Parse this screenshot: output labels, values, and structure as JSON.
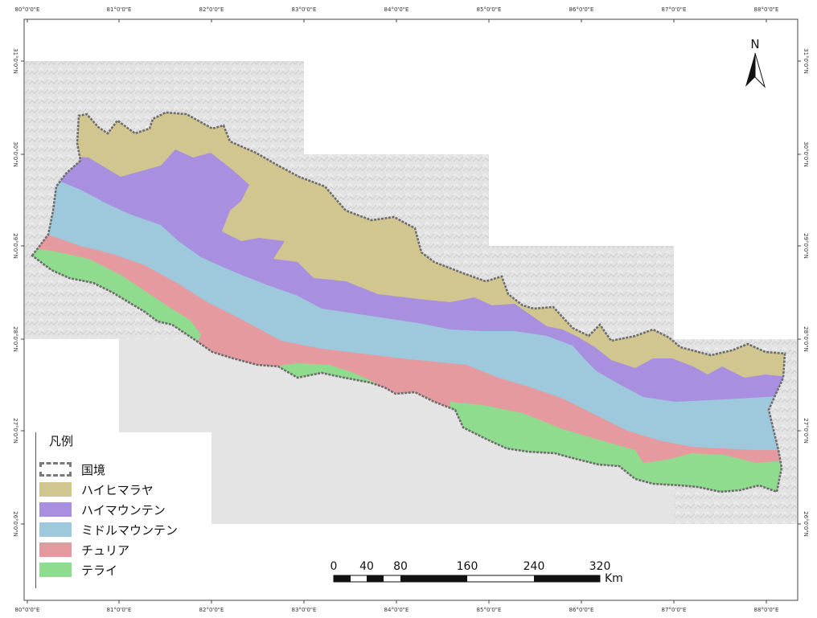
{
  "map": {
    "north_label": "N",
    "lon_ticks": [
      "80°0'0\"E",
      "81°0'0\"E",
      "82°0'0\"E",
      "83°0'0\"E",
      "84°0'0\"E",
      "85°0'0\"E",
      "86°0'0\"E",
      "87°0'0\"E",
      "88°0'0\"E"
    ],
    "lat_ticks": [
      "31°0'0\"N",
      "30°0'0\"N",
      "29°0'0\"N",
      "28°0'0\"N",
      "27°0'0\"N",
      "26°0'0\"N"
    ]
  },
  "legend": {
    "title": "凡例",
    "items": [
      {
        "label": "国境",
        "color": "#ffffff",
        "key": "border"
      },
      {
        "label": "ハイヒマラヤ",
        "color": "#d1c590",
        "key": "high-himalaya"
      },
      {
        "label": "ハイマウンテン",
        "color": "#a98fe0",
        "key": "high-mountain"
      },
      {
        "label": "ミドルマウンテン",
        "color": "#9ec8dc",
        "key": "middle-mountain"
      },
      {
        "label": "チュリア",
        "color": "#e59aa0",
        "key": "churia"
      },
      {
        "label": "テライ",
        "color": "#8fdc8f",
        "key": "terai"
      }
    ]
  },
  "scale_bar": {
    "labels": [
      "0",
      "40",
      "80",
      "160",
      "240",
      "320"
    ],
    "unit": "Km"
  }
}
